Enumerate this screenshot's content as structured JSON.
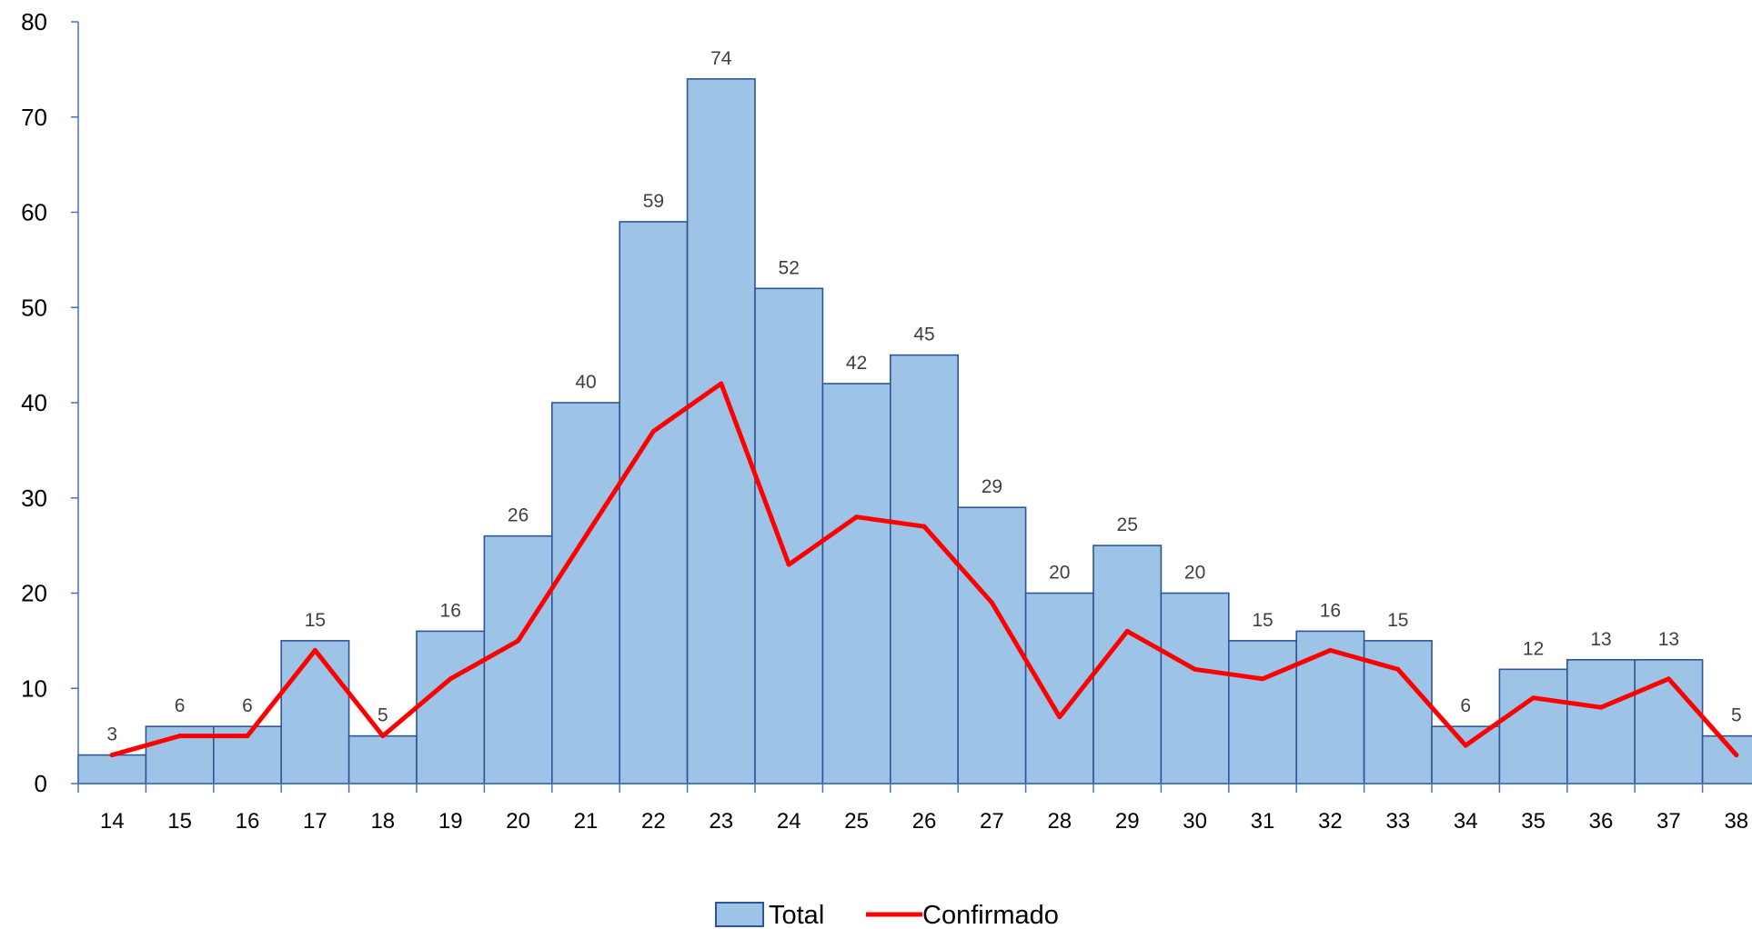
{
  "chart_data": {
    "type": "bar",
    "categories": [
      "14",
      "15",
      "16",
      "17",
      "18",
      "19",
      "20",
      "21",
      "22",
      "23",
      "24",
      "25",
      "26",
      "27",
      "28",
      "29",
      "30",
      "31",
      "32",
      "33",
      "34",
      "35",
      "36",
      "37",
      "38"
    ],
    "series": [
      {
        "name": "Total",
        "type": "bar",
        "color": "#9DC3E6",
        "values": [
          3,
          6,
          6,
          15,
          5,
          16,
          26,
          40,
          59,
          74,
          52,
          42,
          45,
          29,
          20,
          25,
          20,
          15,
          16,
          15,
          6,
          12,
          13,
          13,
          5
        ],
        "data_labels": [
          "3",
          "6",
          "6",
          "15",
          "5",
          "16",
          "26",
          "40",
          "59",
          "74",
          "52",
          "42",
          "45",
          "29",
          "20",
          "25",
          "20",
          "15",
          "16",
          "15",
          "6",
          "12",
          "13",
          "13",
          "5"
        ]
      },
      {
        "name": "Confirmado",
        "type": "line",
        "color": "#FF0000",
        "values": [
          3,
          5,
          5,
          14,
          5,
          11,
          15,
          26,
          37,
          42,
          23,
          28,
          27,
          19,
          7,
          16,
          12,
          11,
          14,
          12,
          4,
          9,
          8,
          11,
          3
        ]
      }
    ],
    "yticks": [
      "0",
      "10",
      "20",
      "30",
      "40",
      "50",
      "60",
      "70",
      "80"
    ],
    "ylim": [
      0,
      80
    ],
    "grid": false,
    "legend_position": "bottom",
    "colors": {
      "bar_fill": "#9DC3E6",
      "bar_stroke": "#2F5597",
      "axis": "#4472C4",
      "line": "#FF0000"
    }
  }
}
